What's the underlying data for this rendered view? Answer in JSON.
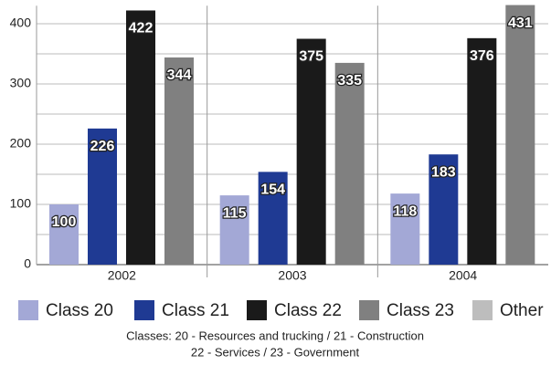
{
  "chart_data": {
    "type": "bar",
    "categories": [
      "2002",
      "2003",
      "2004"
    ],
    "series": [
      {
        "name": "Class 20",
        "color": "#a3a8d6",
        "values": [
          100,
          115,
          118
        ]
      },
      {
        "name": "Class 21",
        "color": "#1f3a93",
        "values": [
          226,
          154,
          183
        ]
      },
      {
        "name": "Class 22",
        "color": "#1a1a1a",
        "values": [
          422,
          375,
          376
        ]
      },
      {
        "name": "Class 23",
        "color": "#808080",
        "values": [
          344,
          335,
          431
        ]
      },
      {
        "name": "Other",
        "color": "#bdbdbd",
        "values": [
          null,
          null,
          null
        ]
      }
    ],
    "ylim": [
      0,
      430
    ],
    "yticks": [
      0,
      100,
      200,
      300,
      400
    ],
    "minor_yticks": [
      50,
      150,
      250,
      350
    ],
    "grid": true,
    "legend": "bottom",
    "footnote": [
      "Classes: 20 - Resources and trucking / 21 - Construction",
      "22 - Services / 23 - Government"
    ]
  }
}
